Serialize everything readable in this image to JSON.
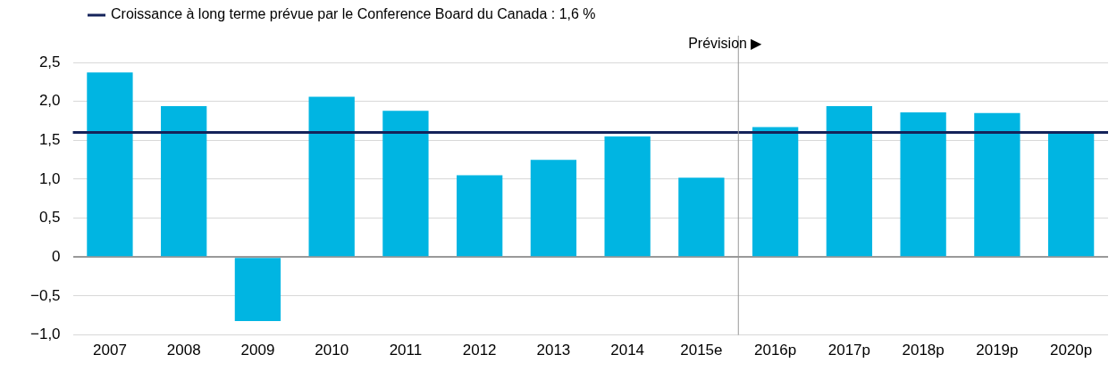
{
  "chart_data": {
    "type": "bar",
    "categories": [
      "2007",
      "2008",
      "2009",
      "2010",
      "2011",
      "2012",
      "2013",
      "2014",
      "2015e",
      "2016p",
      "2017p",
      "2018p",
      "2019p",
      "2020p"
    ],
    "values": [
      2.37,
      1.94,
      -0.82,
      2.06,
      1.88,
      1.05,
      1.25,
      1.55,
      1.02,
      1.67,
      1.94,
      1.86,
      1.85,
      1.6
    ],
    "color": "#00b5e2",
    "ylim": [
      -1,
      2.5
    ],
    "yticks": [
      {
        "value": -1,
        "label": "−1,0"
      },
      {
        "value": -0.5,
        "label": "−0,5"
      },
      0,
      {
        "value": 0.5,
        "label": "0,5"
      },
      {
        "value": 1,
        "label": "1,0"
      },
      {
        "value": 1.5,
        "label": "1,5"
      },
      {
        "value": 2,
        "label": "2,0"
      },
      {
        "value": 2.5,
        "label": "2,5"
      }
    ],
    "grid": "y",
    "ref_lines": [
      {
        "axis": "y",
        "value": 1.6,
        "label": "Croissance à long terme prévue par le Conference Board du Canada : 1,6 %",
        "color": "#14235a"
      },
      {
        "axis": "x",
        "value": "2016p",
        "label": "Prévision ▶",
        "color": "#999999"
      }
    ]
  }
}
